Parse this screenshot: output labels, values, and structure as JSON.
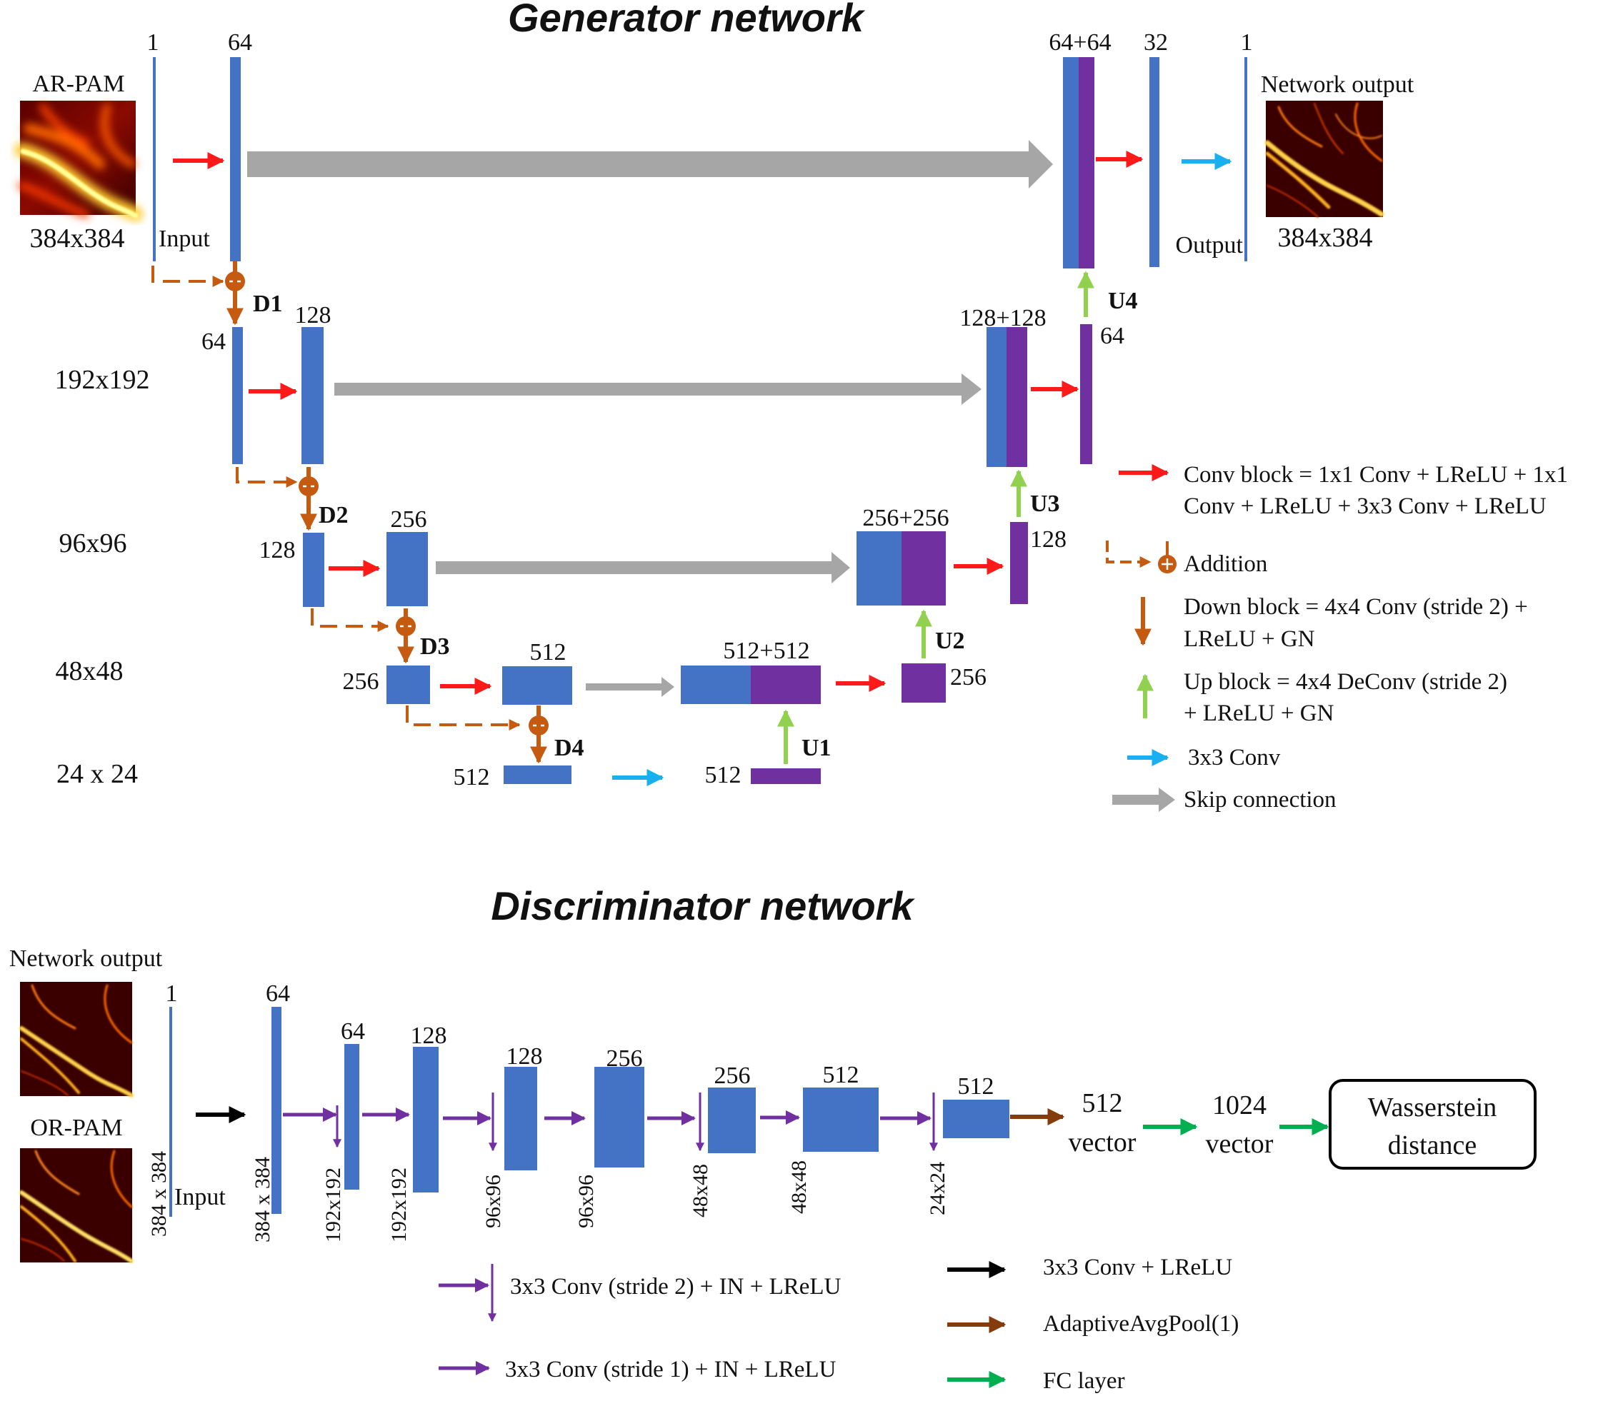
{
  "colors": {
    "blue": "#4472c4",
    "purple": "#7030a0",
    "red": "#ff1a1a",
    "orange": "#c55a11",
    "green_up": "#92d050",
    "cyan": "#1ab0f0",
    "gray": "#a6a6a6",
    "black": "#000000",
    "brown": "#843c0c",
    "fc_green": "#00b050",
    "disc_purple": "#7030a0"
  },
  "generator": {
    "title": "Generator network",
    "input_image_label": "AR-PAM",
    "input_size": "384x384",
    "input_label": "Input",
    "output_image_label": "Network output",
    "output_size": "384x384",
    "output_label": "Output",
    "ch_input": "1",
    "ch_64a": "64",
    "ch_64_64": "64+64",
    "ch_32": "32",
    "ch_out": "1",
    "res_192": "192x192",
    "res_96": "96x96",
    "res_48": "48x48",
    "res_24": "24 x 24",
    "ch_d1_64": "64",
    "ch_d1_128": "128",
    "ch_128_128": "128+128",
    "ch_u4_64": "64",
    "ch_d2_128": "128",
    "ch_d2_256": "256",
    "ch_256_256": "256+256",
    "ch_u3_128": "128",
    "ch_d3_256": "256",
    "ch_d3_512": "512",
    "ch_512_512": "512+512",
    "ch_u2_256": "256",
    "ch_d4_512": "512",
    "ch_u1_512": "512",
    "d1": "D1",
    "d2": "D2",
    "d3": "D3",
    "d4": "D4",
    "u1": "U1",
    "u2": "U2",
    "u3": "U3",
    "u4": "U4"
  },
  "generator_legend": {
    "conv_block_line1": "Conv block = 1x1 Conv + LReLU + 1x1",
    "conv_block_line2": "Conv + LReLU +  3x3 Conv + LReLU",
    "addition": "Addition",
    "down_line1": "Down block = 4x4 Conv (stride 2) +",
    "down_line2": "LReLU + GN",
    "up_line1": "Up block = 4x4 DeConv (stride 2)",
    "up_line2": "+ LReLU + GN",
    "conv3": "3x3 Conv",
    "skip": "Skip connection"
  },
  "discriminator": {
    "title": "Discriminator network",
    "network_output_label": "Network output",
    "or_pam_label": "OR-PAM",
    "input_ch": "1",
    "input_size": "384 x 384",
    "input_label": "Input",
    "layers": [
      {
        "ch": "64",
        "size": "384 x 384"
      },
      {
        "ch": "64",
        "size": "192x192"
      },
      {
        "ch": "128",
        "size": "192x192"
      },
      {
        "ch": "128",
        "size": "96x96"
      },
      {
        "ch": "256",
        "size": "96x96"
      },
      {
        "ch": "256",
        "size": "48x48"
      },
      {
        "ch": "512",
        "size": "48x48"
      },
      {
        "ch": "512",
        "size": "24x24"
      }
    ],
    "vec512_num": "512",
    "vec512_word": "vector",
    "vec1024_num": "1024",
    "vec1024_word": "vector",
    "wasserstein_line1": "Wasserstein",
    "wasserstein_line2": "distance"
  },
  "discriminator_legend": {
    "stride2": "3x3 Conv (stride 2) + IN + LReLU",
    "stride1": "3x3 Conv (stride 1) + IN + LReLU",
    "conv_lrelu": "3x3 Conv + LReLU",
    "pool": "AdaptiveAvgPool(1)",
    "fc": "FC layer"
  }
}
